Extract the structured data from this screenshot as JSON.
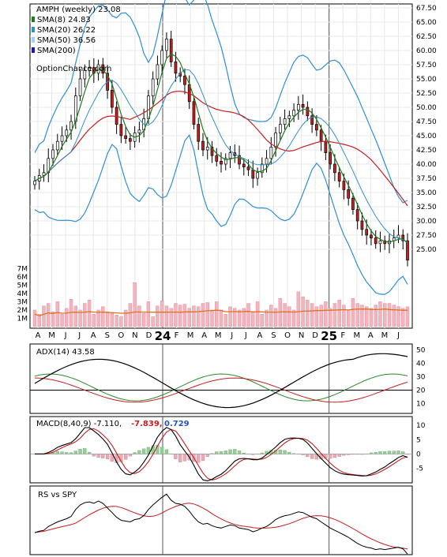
{
  "title": "AMPH (weekly) 23.08",
  "watermark": "OptionChance.com",
  "legend": [
    {
      "label": "SMA(8) 24.83",
      "color": "#1e7a1e"
    },
    {
      "label": "SMA(20) 26.22",
      "color": "#2f8fd0"
    },
    {
      "label": "SMA(50) 36.56",
      "color": "#9fd3f0"
    },
    {
      "label": "SMA(200)",
      "color": "#1a1aa8"
    }
  ],
  "x_axis_labels": [
    "A",
    "M",
    "J",
    "J",
    "A",
    "S",
    "O",
    "N",
    "D",
    "24",
    "F",
    "M",
    "A",
    "M",
    "J",
    "J",
    "A",
    "S",
    "O",
    "N",
    "D",
    "25",
    "F",
    "M",
    "A",
    "M",
    "J"
  ],
  "price_axis_labels": [
    "67.50",
    "65.00",
    "62.50",
    "60.00",
    "57.50",
    "55.00",
    "52.50",
    "50.00",
    "47.50",
    "45.00",
    "42.50",
    "40.00",
    "37.50",
    "35.00",
    "32.50",
    "30.00",
    "27.50",
    "25.00"
  ],
  "volume_axis_labels": [
    "7M",
    "6M",
    "5M",
    "4M",
    "3M",
    "2M",
    "1M"
  ],
  "adx": {
    "label": "ADX(14) 43.58",
    "axis": [
      "50",
      "40",
      "30",
      "20",
      "10"
    ]
  },
  "macd": {
    "label": "MACD(8,40,9) -7.110,",
    "val2": "-7.839,",
    "val3": "0.729",
    "axis": [
      "10",
      "5",
      "0",
      "-5"
    ]
  },
  "rs": {
    "label": "RS vs SPY"
  },
  "colors": {
    "up": "#ffffff",
    "down": "#c81e1e",
    "sma8": "#1e7a1e",
    "sma20": "#2f8fd0",
    "sma50": "#c81e1e",
    "bb": "#2f8fd0",
    "vol": "#f4b3bd",
    "volavg": "#e07020",
    "macdpos": "#8fd18f",
    "macdneg": "#f4a5b4"
  },
  "chart_data": {
    "type": "candlestick",
    "title": "AMPH (weekly) 23.08",
    "x_labels": [
      "A",
      "M",
      "J",
      "J",
      "A",
      "S",
      "O",
      "N",
      "D",
      "24",
      "F",
      "M",
      "A",
      "M",
      "J",
      "J",
      "A",
      "S",
      "O",
      "N",
      "D",
      "25",
      "F",
      "M",
      "A",
      "M",
      "J"
    ],
    "price_ylim": [
      22.5,
      67.5
    ],
    "close": [
      37.0,
      38.0,
      38.5,
      41.0,
      42.5,
      44.0,
      45.0,
      46.0,
      47.5,
      52.0,
      55.0,
      56.5,
      57.0,
      56.0,
      57.5,
      56.0,
      53.0,
      50.0,
      47.0,
      45.0,
      44.5,
      44.0,
      45.5,
      46.0,
      48.0,
      52.0,
      55.0,
      57.5,
      60.0,
      62.0,
      58.0,
      56.0,
      55.5,
      54.0,
      51.0,
      47.0,
      44.0,
      42.5,
      43.0,
      41.5,
      40.5,
      40.0,
      41.0,
      42.0,
      41.5,
      40.0,
      39.5,
      39.0,
      37.5,
      38.5,
      40.0,
      41.0,
      43.0,
      45.5,
      47.0,
      48.0,
      48.5,
      49.5,
      50.5,
      50.0,
      48.5,
      47.0,
      46.0,
      44.0,
      42.0,
      40.0,
      38.5,
      37.0,
      35.5,
      34.0,
      32.0,
      30.0,
      28.5,
      27.5,
      27.0,
      26.0,
      26.5,
      26.0,
      26.5,
      27.0,
      27.5,
      26.5,
      23.1
    ],
    "sma8_last": 24.83,
    "sma20_last": 26.22,
    "sma50_last": 36.56,
    "volume_millions": [
      2.0,
      1.5,
      2.5,
      2.8,
      1.8,
      3.0,
      1.5,
      2.2,
      3.3,
      2.5,
      2.0,
      2.8,
      3.2,
      1.5,
      2.0,
      2.4,
      1.8,
      1.6,
      1.4,
      1.2,
      2.0,
      2.8,
      5.3,
      2.5,
      1.6,
      3.0,
      1.2,
      2.5,
      3.1,
      2.5,
      2.2,
      2.8,
      2.6,
      2.7,
      2.2,
      2.5,
      2.4,
      2.8,
      2.9,
      2.0,
      3.0,
      2.0,
      1.5,
      2.4,
      2.2,
      2.0,
      2.2,
      2.8,
      1.8,
      3.0,
      1.5,
      2.0,
      2.6,
      2.2,
      3.4,
      2.8,
      2.4,
      2.0,
      4.2,
      3.6,
      3.2,
      2.8,
      2.4,
      2.6,
      3.0,
      2.2,
      2.8,
      3.2,
      2.6,
      2.0,
      3.4,
      2.8,
      2.6,
      2.4,
      2.2,
      2.6,
      3.0,
      2.8,
      2.8,
      2.6,
      2.4,
      2.2,
      2.4
    ],
    "adx_ylim": [
      5,
      52
    ],
    "adx_last": 43.58,
    "macd": {
      "ylim": [
        -9,
        12
      ],
      "macd": -7.11,
      "signal": -7.839,
      "hist": 0.729
    },
    "rs_vs_spy": "line"
  }
}
